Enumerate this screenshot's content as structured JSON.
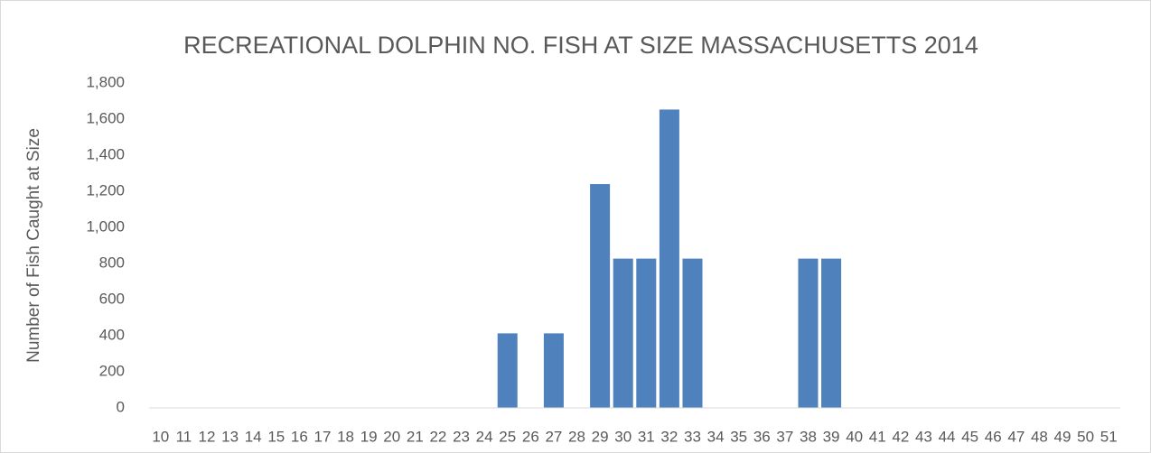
{
  "chart_data": {
    "type": "bar",
    "title": "RECREATIONAL DOLPHIN NO. FISH AT SIZE MASSACHUSETTS 2014",
    "y_label": "Number of Fish Caught at Size",
    "categories": [
      "10",
      "11",
      "12",
      "13",
      "14",
      "15",
      "16",
      "17",
      "18",
      "19",
      "20",
      "21",
      "22",
      "23",
      "24",
      "25",
      "26",
      "27",
      "28",
      "29",
      "30",
      "31",
      "32",
      "33",
      "34",
      "35",
      "36",
      "37",
      "38",
      "39",
      "40",
      "41",
      "42",
      "43",
      "44",
      "45",
      "46",
      "47",
      "48",
      "49",
      "50",
      "51"
    ],
    "values": [
      0,
      0,
      0,
      0,
      0,
      0,
      0,
      0,
      0,
      0,
      0,
      0,
      0,
      0,
      0,
      413,
      0,
      413,
      0,
      1240,
      827,
      827,
      1653,
      827,
      0,
      0,
      0,
      0,
      827,
      827,
      0,
      0,
      0,
      0,
      0,
      0,
      0,
      0,
      0,
      0,
      0,
      0
    ],
    "color": "#4f81bd",
    "ylim": [
      0,
      1800
    ],
    "yticks": [
      0,
      200,
      400,
      600,
      800,
      {
        "value": 1000,
        "label": "1,000"
      },
      {
        "value": 1200,
        "label": "1,200"
      },
      {
        "value": 1400,
        "label": "1,400"
      },
      {
        "value": 1600,
        "label": "1,600"
      },
      {
        "value": 1800,
        "label": "1,800"
      }
    ],
    "grid": false
  }
}
